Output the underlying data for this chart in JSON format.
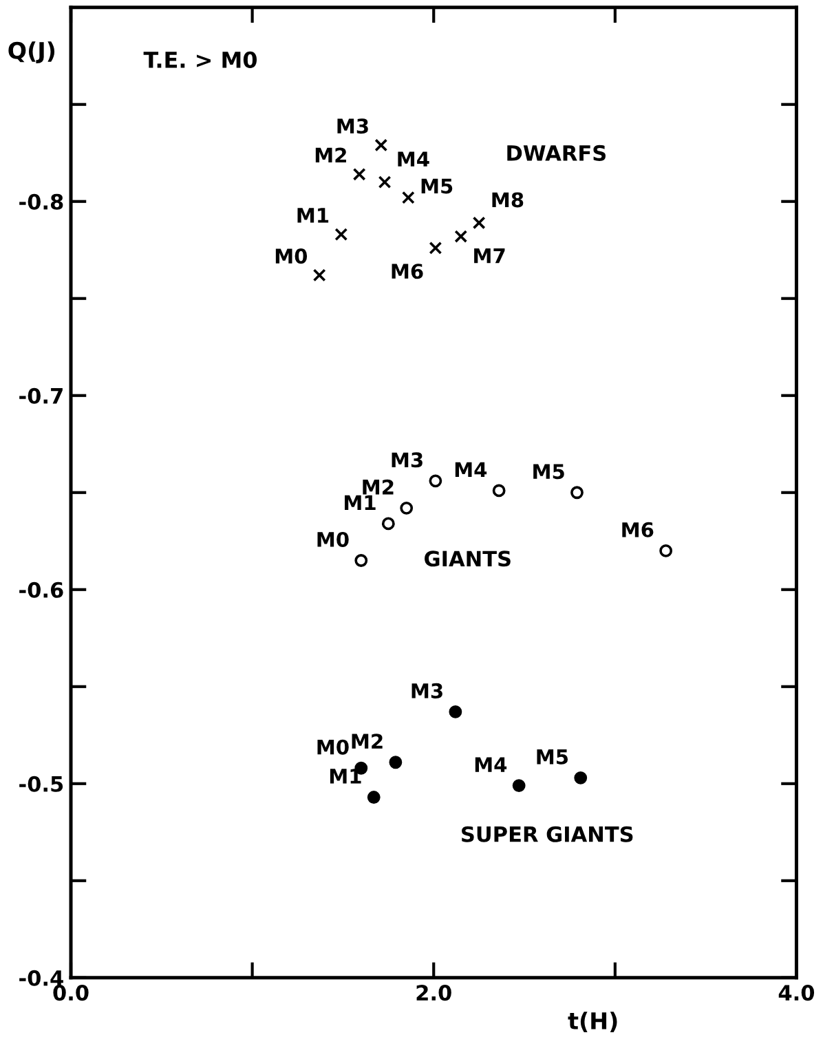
{
  "chart_data": {
    "type": "scatter",
    "xlabel": "t(H)",
    "ylabel": "Q(J)",
    "xlim": [
      0,
      4.0
    ],
    "ylim": [
      -0.4,
      -0.9
    ],
    "xticks": [
      {
        "value": 0,
        "label": "0.0"
      },
      {
        "value": 1.0,
        "label": null
      },
      {
        "value": 2.0,
        "label": "2.0"
      },
      {
        "value": 3.0,
        "label": null
      },
      {
        "value": 4.0,
        "label": "4.0"
      }
    ],
    "yticks": [
      {
        "value": -0.4,
        "label": "-0.4"
      },
      {
        "value": -0.45,
        "label": null
      },
      {
        "value": -0.5,
        "label": "-0.5"
      },
      {
        "value": -0.55,
        "label": null
      },
      {
        "value": -0.6,
        "label": "-0.6"
      },
      {
        "value": -0.65,
        "label": null
      },
      {
        "value": -0.7,
        "label": "-0.7"
      },
      {
        "value": -0.75,
        "label": null
      },
      {
        "value": -0.8,
        "label": "-0.8"
      },
      {
        "value": -0.85,
        "label": null
      }
    ],
    "grid": false,
    "legend": false,
    "series": [
      {
        "name": "DWARFS",
        "color": "#000000",
        "marker": "cross",
        "x": [
          1.37,
          1.49,
          1.59,
          1.71,
          1.73,
          1.86,
          2.01,
          2.15,
          2.25
        ],
        "values": [
          -0.762,
          -0.783,
          -0.814,
          -0.829,
          -0.81,
          -0.802,
          -0.776,
          -0.782,
          -0.789
        ]
      },
      {
        "name": "GIANTS",
        "color": "#000000",
        "marker": "circle",
        "x": [
          1.6,
          1.75,
          1.85,
          2.01,
          2.36,
          2.79,
          3.28
        ],
        "values": [
          -0.615,
          -0.634,
          -0.642,
          -0.656,
          -0.651,
          -0.65,
          -0.62
        ]
      },
      {
        "name": "SUPER GIANTS",
        "color": "#000000",
        "marker": "circle",
        "x": [
          1.6,
          1.67,
          1.79,
          2.12,
          2.47,
          2.81
        ],
        "values": [
          -0.508,
          -0.493,
          -0.511,
          -0.537,
          -0.499,
          -0.503
        ]
      }
    ],
    "annotations": [
      "T.E. > M0",
      {
        "text": "M0",
        "x": 1.37,
        "y": -0.762
      },
      {
        "text": "M1",
        "x": 1.49,
        "y": -0.783
      },
      {
        "text": "M2",
        "x": 1.59,
        "y": -0.814
      },
      {
        "text": "M3",
        "x": 1.71,
        "y": -0.829
      },
      {
        "text": "M4",
        "x": 1.73,
        "y": -0.81
      },
      {
        "text": "M5",
        "x": 1.86,
        "y": -0.802
      },
      {
        "text": "M6",
        "x": 2.01,
        "y": -0.776
      },
      {
        "text": "M7",
        "x": 2.15,
        "y": -0.782
      },
      {
        "text": "M8",
        "x": 2.25,
        "y": -0.789
      },
      {
        "text": "M0",
        "x": 1.6,
        "y": -0.615
      },
      {
        "text": "M1",
        "x": 1.75,
        "y": -0.634
      },
      {
        "text": "M2",
        "x": 1.85,
        "y": -0.642
      },
      {
        "text": "M3",
        "x": 2.01,
        "y": -0.656
      },
      {
        "text": "M4",
        "x": 2.36,
        "y": -0.651
      },
      {
        "text": "M5",
        "x": 2.79,
        "y": -0.65
      },
      {
        "text": "M6",
        "x": 3.28,
        "y": -0.62
      },
      {
        "text": "M0",
        "x": 1.6,
        "y": -0.508
      },
      {
        "text": "M1",
        "x": 1.67,
        "y": -0.493
      },
      {
        "text": "M2",
        "x": 1.79,
        "y": -0.511
      },
      {
        "text": "M3",
        "x": 2.12,
        "y": -0.537
      },
      {
        "text": "M4",
        "x": 2.47,
        "y": -0.499
      },
      {
        "text": "M5",
        "x": 2.81,
        "y": -0.503
      }
    ]
  }
}
